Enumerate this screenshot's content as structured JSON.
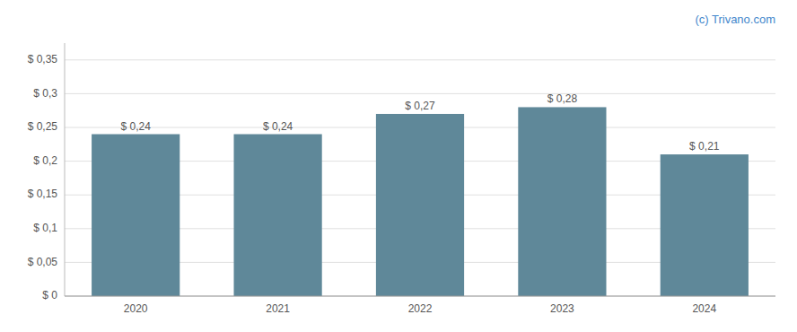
{
  "chart_data": {
    "type": "bar",
    "annotation": "(c) Trivano.com",
    "categories": [
      "2020",
      "2021",
      "2022",
      "2023",
      "2024"
    ],
    "values": [
      0.24,
      0.24,
      0.27,
      0.28,
      0.21
    ],
    "value_labels": [
      "$ 0,24",
      "$ 0,24",
      "$ 0,27",
      "$ 0,28",
      "$ 0,21"
    ],
    "color": "#5f8899",
    "ylim": [
      0,
      0.375
    ],
    "yticks": [
      {
        "value": 0,
        "label": "$ 0"
      },
      {
        "value": 0.05,
        "label": "$ 0,05"
      },
      {
        "value": 0.1,
        "label": "$ 0,1"
      },
      {
        "value": 0.15,
        "label": "$ 0,15"
      },
      {
        "value": 0.2,
        "label": "$ 0,2"
      },
      {
        "value": 0.25,
        "label": "$ 0,25"
      },
      {
        "value": 0.3,
        "label": "$ 0,3"
      },
      {
        "value": 0.35,
        "label": "$ 0,35"
      }
    ],
    "grid": true,
    "data_labels": true
  }
}
